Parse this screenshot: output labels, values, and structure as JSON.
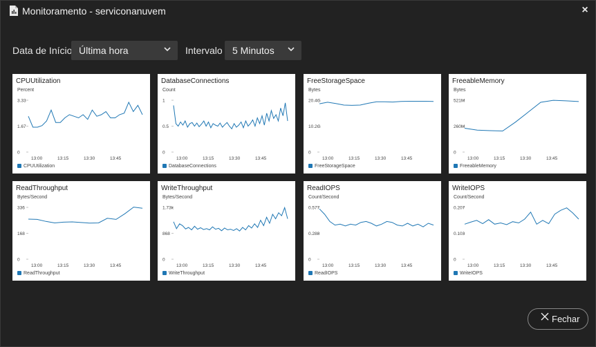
{
  "window": {
    "title": "Monitoramento - serviconanuvem",
    "close_glyph": "×"
  },
  "controls": {
    "start_label": "Data de Início",
    "start_value": "Última hora",
    "interval_label": "Intervalo",
    "interval_value": "5 Minutos"
  },
  "footer": {
    "close_label": "Fechar"
  },
  "accent": "#1f77b4",
  "chart_data": [
    {
      "type": "line",
      "title": "CPUUtilization",
      "ylabel": "Percent",
      "y_ticks": [
        "3.33",
        "1.67",
        "0"
      ],
      "ylim": [
        0,
        3.33
      ],
      "x_ticks": [
        "13:00",
        "13:15",
        "13:30",
        "13:45"
      ],
      "legend": "CPUUtilization",
      "series": [
        {
          "values": [
            2.3,
            1.6,
            1.6,
            1.7,
            2.0,
            2.7,
            1.9,
            1.9,
            2.2,
            2.4,
            2.3,
            2.2,
            2.4,
            2.1,
            2.7,
            2.3,
            2.4,
            2.6,
            2.2,
            2.2,
            2.4,
            2.5,
            3.2,
            2.6,
            3.0,
            2.4
          ]
        }
      ]
    },
    {
      "type": "line",
      "title": "DatabaseConnections",
      "ylabel": "Count",
      "y_ticks": [
        "1",
        "0.5",
        "0"
      ],
      "ylim": [
        0,
        1
      ],
      "x_ticks": [
        "13:00",
        "13:15",
        "13:30",
        "13:45"
      ],
      "legend": "DatabaseConnections",
      "series": [
        {
          "values": [
            0.9,
            0.55,
            0.5,
            0.58,
            0.52,
            0.6,
            0.48,
            0.55,
            0.57,
            0.5,
            0.56,
            0.49,
            0.54,
            0.6,
            0.5,
            0.58,
            0.47,
            0.55,
            0.52,
            0.5,
            0.56,
            0.48,
            0.53,
            0.57,
            0.5,
            0.45,
            0.55,
            0.48,
            0.52,
            0.58,
            0.47,
            0.6,
            0.5,
            0.55,
            0.62,
            0.5,
            0.66,
            0.55,
            0.7,
            0.52,
            0.75,
            0.6,
            0.8,
            0.65,
            0.72,
            0.6,
            0.85,
            0.7,
            0.95,
            0.6
          ]
        }
      ]
    },
    {
      "type": "line",
      "title": "FreeStorageSpace",
      "ylabel": "Bytes",
      "y_ticks": [
        "20.4G",
        "10.2G",
        "0"
      ],
      "ylim": [
        0,
        20.4
      ],
      "x_ticks": [
        "13:00",
        "13:15",
        "13:30",
        "13:45"
      ],
      "legend": "FreeStorageSpace",
      "series": [
        {
          "values": [
            19.0,
            19.6,
            19.1,
            18.5,
            18.4,
            18.5,
            19.2,
            19.8,
            19.8,
            19.7,
            19.9,
            20.0,
            20.0,
            20.0,
            19.9
          ]
        }
      ]
    },
    {
      "type": "line",
      "title": "FreeableMemory",
      "ylabel": "Bytes",
      "y_ticks": [
        "521M",
        "260M",
        "0"
      ],
      "ylim": [
        0,
        521
      ],
      "x_ticks": [
        "13:00",
        "13:15",
        "13:30",
        "13:45"
      ],
      "legend": "FreeableMemory",
      "series": [
        {
          "values": [
            240,
            220,
            215,
            212,
            300,
            400,
            500,
            520,
            515,
            508
          ]
        }
      ]
    },
    {
      "type": "line",
      "title": "ReadThroughput",
      "ylabel": "Bytes/Second",
      "y_ticks": [
        "336",
        "168",
        "0"
      ],
      "ylim": [
        0,
        336
      ],
      "x_ticks": [
        "13:00",
        "13:15",
        "13:30",
        "13:45"
      ],
      "legend": "ReadThroughput",
      "series": [
        {
          "values": [
            260,
            258,
            245,
            235,
            240,
            242,
            238,
            234,
            235,
            265,
            258,
            295,
            338,
            330
          ]
        }
      ]
    },
    {
      "type": "line",
      "title": "WriteThroughput",
      "ylabel": "Bytes/Second",
      "y_ticks": [
        "1.73k",
        "868",
        "0"
      ],
      "ylim": [
        0,
        1730
      ],
      "x_ticks": [
        "13:00",
        "13:15",
        "13:30",
        "13:45"
      ],
      "legend": "WriteThroughput",
      "series": [
        {
          "values": [
            1250,
            1020,
            1180,
            1120,
            1010,
            1060,
            980,
            1100,
            1000,
            1050,
            990,
            1020,
            980,
            1080,
            1000,
            1030,
            950,
            1040,
            980,
            1000,
            960,
            1020,
            940,
            1060,
            980,
            1120,
            1040,
            1180,
            1060,
            1300,
            1120,
            1400,
            1200,
            1500,
            1350,
            1550,
            1450,
            1720,
            1350
          ]
        }
      ]
    },
    {
      "type": "line",
      "title": "ReadIOPS",
      "ylabel": "Count/Second",
      "y_ticks": [
        "0.577",
        "0.288",
        "0"
      ],
      "ylim": [
        0,
        0.577
      ],
      "x_ticks": [
        "13:00",
        "13:15",
        "13:30",
        "13:45"
      ],
      "legend": "ReadIOPS",
      "series": [
        {
          "values": [
            0.56,
            0.5,
            0.42,
            0.38,
            0.39,
            0.37,
            0.39,
            0.38,
            0.41,
            0.42,
            0.4,
            0.37,
            0.39,
            0.42,
            0.41,
            0.38,
            0.37,
            0.4,
            0.37,
            0.39,
            0.36,
            0.4,
            0.38
          ]
        }
      ]
    },
    {
      "type": "line",
      "title": "WriteIOPS",
      "ylabel": "Count/Second",
      "y_ticks": [
        "0.207",
        "0.103",
        "0"
      ],
      "ylim": [
        0,
        0.207
      ],
      "x_ticks": [
        "13:00",
        "13:15",
        "13:30",
        "13:45"
      ],
      "legend": "WriteIOPS",
      "series": [
        {
          "values": [
            0.14,
            0.148,
            0.155,
            0.142,
            0.158,
            0.14,
            0.145,
            0.138,
            0.15,
            0.145,
            0.16,
            0.188,
            0.14,
            0.155,
            0.142,
            0.18,
            0.195,
            0.205,
            0.185,
            0.16
          ]
        }
      ]
    }
  ]
}
